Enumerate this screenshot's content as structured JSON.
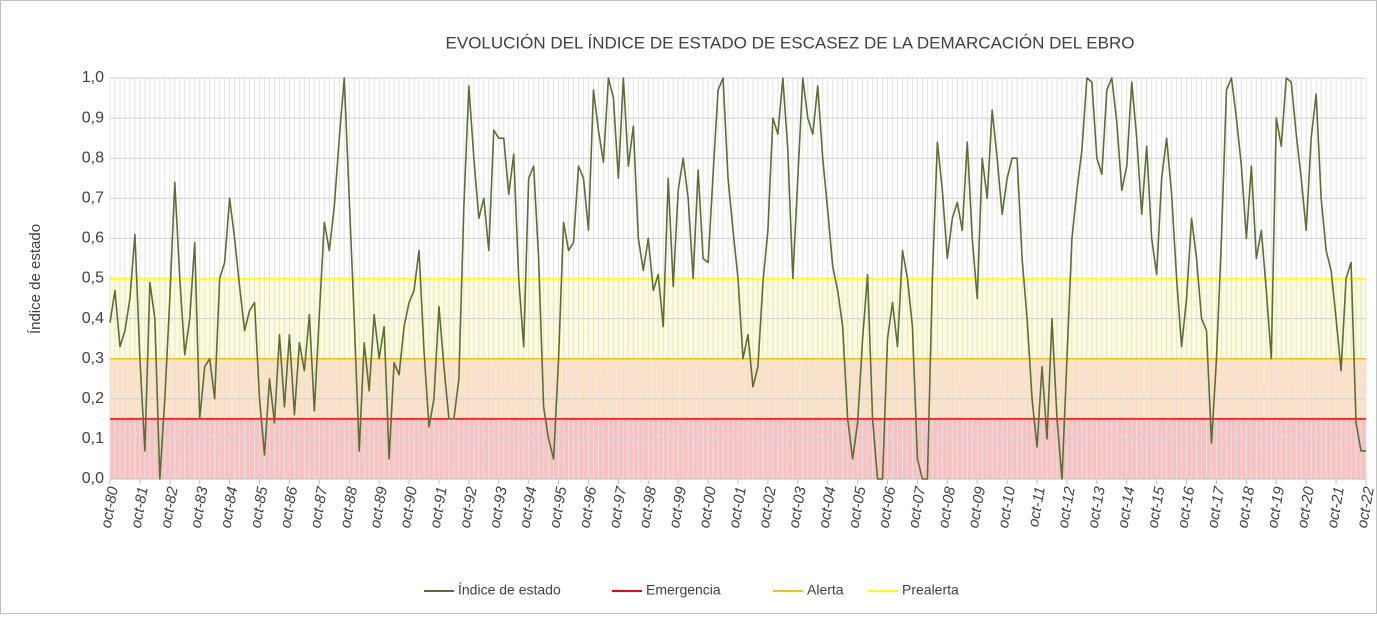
{
  "chart_data": {
    "type": "line",
    "title": "EVOLUCIÓN DEL ÍNDICE DE ESTADO DE ESCASEZ DE LA DEMARCACIÓN DEL EBRO",
    "y_label": "Índice de estado",
    "categories": [
      "oct-80",
      null,
      null,
      null,
      null,
      null,
      "oct-81",
      null,
      null,
      null,
      null,
      null,
      "oct-82",
      null,
      null,
      null,
      null,
      null,
      "oct-83",
      null,
      null,
      null,
      null,
      null,
      "oct-84",
      null,
      null,
      null,
      null,
      null,
      "oct-85",
      null,
      null,
      null,
      null,
      null,
      "oct-86",
      null,
      null,
      null,
      null,
      null,
      "oct-87",
      null,
      null,
      null,
      null,
      null,
      "oct-88",
      null,
      null,
      null,
      null,
      null,
      "oct-89",
      null,
      null,
      null,
      null,
      null,
      "oct-90",
      null,
      null,
      null,
      null,
      null,
      "oct-91",
      null,
      null,
      null,
      null,
      null,
      "oct-92",
      null,
      null,
      null,
      null,
      null,
      "oct-93",
      null,
      null,
      null,
      null,
      null,
      "oct-94",
      null,
      null,
      null,
      null,
      null,
      "oct-95",
      null,
      null,
      null,
      null,
      null,
      "oct-96",
      null,
      null,
      null,
      null,
      null,
      "oct-97",
      null,
      null,
      null,
      null,
      null,
      "oct-98",
      null,
      null,
      null,
      null,
      null,
      "oct-99",
      null,
      null,
      null,
      null,
      null,
      "oct-00",
      null,
      null,
      null,
      null,
      null,
      "oct-01",
      null,
      null,
      null,
      null,
      null,
      "oct-02",
      null,
      null,
      null,
      null,
      null,
      "oct-03",
      null,
      null,
      null,
      null,
      null,
      "oct-04",
      null,
      null,
      null,
      null,
      null,
      "oct-05",
      null,
      null,
      null,
      null,
      null,
      "oct-06",
      null,
      null,
      null,
      null,
      null,
      "oct-07",
      null,
      null,
      null,
      null,
      null,
      "oct-08",
      null,
      null,
      null,
      null,
      null,
      "oct-09",
      null,
      null,
      null,
      null,
      null,
      "oct-10",
      null,
      null,
      null,
      null,
      null,
      "oct-11",
      null,
      null,
      null,
      null,
      null,
      "oct-12",
      null,
      null,
      null,
      null,
      null,
      "oct-13",
      null,
      null,
      null,
      null,
      null,
      "oct-14",
      null,
      null,
      null,
      null,
      null,
      "oct-15",
      null,
      null,
      null,
      null,
      null,
      "oct-16",
      null,
      null,
      null,
      null,
      null,
      "oct-17",
      null,
      null,
      null,
      null,
      null,
      "oct-18",
      null,
      null,
      null,
      null,
      null,
      "oct-19",
      null,
      null,
      null,
      null,
      null,
      "oct-20",
      null,
      null,
      null,
      null,
      null,
      "oct-21",
      null,
      null,
      null,
      null,
      null,
      "oct-22"
    ],
    "series": [
      {
        "name": "Índice de estado",
        "color": "#5b7030",
        "values": [
          0.39,
          0.47,
          0.33,
          0.37,
          0.45,
          0.61,
          0.3,
          0.07,
          0.49,
          0.4,
          0.0,
          0.2,
          0.45,
          0.74,
          0.5,
          0.31,
          0.4,
          0.59,
          0.15,
          0.28,
          0.3,
          0.2,
          0.5,
          0.54,
          0.7,
          0.6,
          0.48,
          0.37,
          0.42,
          0.44,
          0.2,
          0.06,
          0.25,
          0.14,
          0.36,
          0.18,
          0.36,
          0.16,
          0.34,
          0.27,
          0.41,
          0.17,
          0.41,
          0.64,
          0.57,
          0.68,
          0.85,
          1.0,
          0.7,
          0.4,
          0.07,
          0.34,
          0.22,
          0.41,
          0.3,
          0.38,
          0.05,
          0.29,
          0.26,
          0.38,
          0.44,
          0.47,
          0.57,
          0.32,
          0.13,
          0.2,
          0.43,
          0.28,
          0.15,
          0.15,
          0.25,
          0.68,
          0.98,
          0.8,
          0.65,
          0.7,
          0.57,
          0.87,
          0.85,
          0.85,
          0.71,
          0.81,
          0.5,
          0.33,
          0.75,
          0.78,
          0.55,
          0.18,
          0.1,
          0.05,
          0.3,
          0.64,
          0.57,
          0.59,
          0.78,
          0.75,
          0.62,
          0.97,
          0.87,
          0.79,
          1.0,
          0.95,
          0.75,
          1.0,
          0.78,
          0.88,
          0.6,
          0.52,
          0.6,
          0.47,
          0.51,
          0.38,
          0.75,
          0.48,
          0.72,
          0.8,
          0.7,
          0.5,
          0.77,
          0.55,
          0.54,
          0.76,
          0.97,
          1.0,
          0.75,
          0.62,
          0.5,
          0.3,
          0.36,
          0.23,
          0.28,
          0.49,
          0.62,
          0.9,
          0.86,
          1.0,
          0.82,
          0.5,
          0.75,
          1.0,
          0.9,
          0.86,
          0.98,
          0.8,
          0.67,
          0.53,
          0.47,
          0.38,
          0.15,
          0.05,
          0.14,
          0.35,
          0.51,
          0.15,
          0.0,
          0.0,
          0.35,
          0.44,
          0.33,
          0.57,
          0.5,
          0.38,
          0.05,
          0.0,
          0.0,
          0.5,
          0.84,
          0.72,
          0.55,
          0.65,
          0.69,
          0.62,
          0.84,
          0.6,
          0.45,
          0.8,
          0.7,
          0.92,
          0.8,
          0.66,
          0.75,
          0.8,
          0.8,
          0.55,
          0.4,
          0.2,
          0.08,
          0.28,
          0.1,
          0.4,
          0.15,
          0.0,
          0.3,
          0.6,
          0.72,
          0.82,
          1.0,
          0.99,
          0.8,
          0.76,
          0.97,
          1.0,
          0.89,
          0.72,
          0.78,
          0.99,
          0.85,
          0.66,
          0.83,
          0.6,
          0.51,
          0.75,
          0.85,
          0.71,
          0.5,
          0.33,
          0.45,
          0.65,
          0.55,
          0.4,
          0.37,
          0.09,
          0.3,
          0.6,
          0.97,
          1.0,
          0.9,
          0.78,
          0.6,
          0.78,
          0.55,
          0.62,
          0.47,
          0.3,
          0.9,
          0.83,
          1.0,
          0.99,
          0.86,
          0.75,
          0.62,
          0.85,
          0.96,
          0.7,
          0.57,
          0.52,
          0.4,
          0.27,
          0.5,
          0.54,
          0.14,
          0.07,
          0.07
        ]
      }
    ],
    "thresholds": [
      {
        "name": "Emergencia",
        "color": "#ff0000",
        "value": 0.15
      },
      {
        "name": "Alerta",
        "color": "#ffc000",
        "value": 0.3
      },
      {
        "name": "Prealerta",
        "color": "#ffff00",
        "value": 0.5
      }
    ],
    "ylim": [
      0,
      1
    ],
    "yticks": [
      {
        "value": 0,
        "label": "0,0"
      },
      {
        "value": 0.1,
        "label": "0,1"
      },
      {
        "value": 0.2,
        "label": "0,2"
      },
      {
        "value": 0.3,
        "label": "0,3"
      },
      {
        "value": 0.4,
        "label": "0,4"
      },
      {
        "value": 0.5,
        "label": "0,5"
      },
      {
        "value": 0.6,
        "label": "0,6"
      },
      {
        "value": 0.7,
        "label": "0,7"
      },
      {
        "value": 0.8,
        "label": "0,8"
      },
      {
        "value": 0.9,
        "label": "0,9"
      },
      {
        "value": 1,
        "label": "1,0"
      }
    ],
    "grid": true,
    "legend": "bottom"
  }
}
